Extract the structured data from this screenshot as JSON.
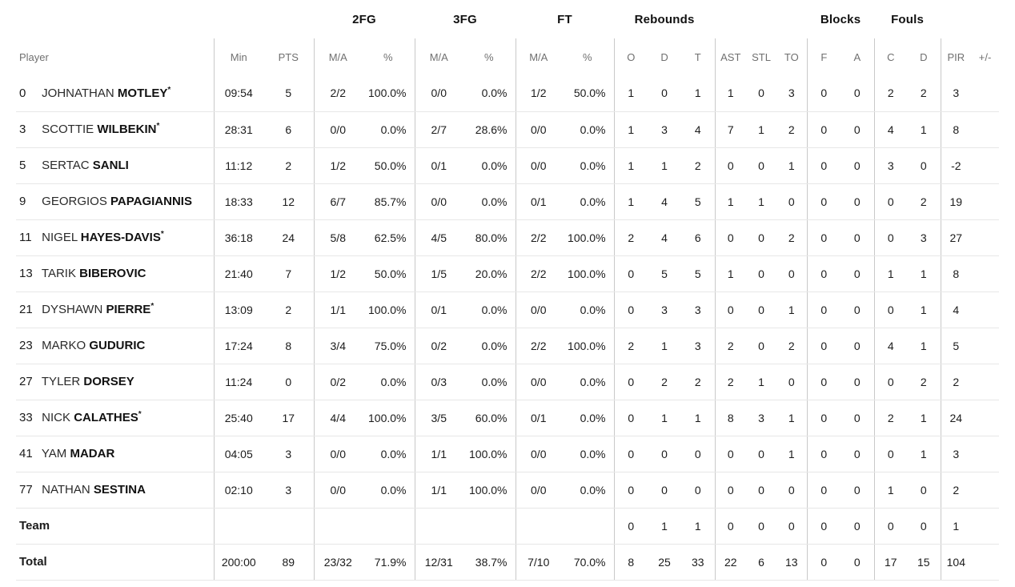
{
  "groups": {
    "fg2": "2FG",
    "fg3": "3FG",
    "ft": "FT",
    "rebounds": "Rebounds",
    "blocks": "Blocks",
    "fouls": "Fouls"
  },
  "columns": {
    "player": "Player",
    "min": "Min",
    "pts": "PTS",
    "ma": "M/A",
    "pct": "%",
    "o": "O",
    "d": "D",
    "t": "T",
    "ast": "AST",
    "stl": "STL",
    "to": "TO",
    "f": "F",
    "a": "A",
    "c": "C",
    "pir": "PIR",
    "plusminus": "+/-"
  },
  "starter_mark": "*",
  "players": [
    {
      "number": "0",
      "first": "JOHNATHAN",
      "last": "MOTLEY",
      "starter": true,
      "stats": [
        "09:54",
        "5",
        "2/2",
        "100.0%",
        "0/0",
        "0.0%",
        "1/2",
        "50.0%",
        "1",
        "0",
        "1",
        "1",
        "0",
        "3",
        "0",
        "0",
        "2",
        "2",
        "3",
        ""
      ]
    },
    {
      "number": "3",
      "first": "SCOTTIE",
      "last": "WILBEKIN",
      "starter": true,
      "stats": [
        "28:31",
        "6",
        "0/0",
        "0.0%",
        "2/7",
        "28.6%",
        "0/0",
        "0.0%",
        "1",
        "3",
        "4",
        "7",
        "1",
        "2",
        "0",
        "0",
        "4",
        "1",
        "8",
        ""
      ]
    },
    {
      "number": "5",
      "first": "SERTAC",
      "last": "SANLI",
      "starter": false,
      "stats": [
        "11:12",
        "2",
        "1/2",
        "50.0%",
        "0/1",
        "0.0%",
        "0/0",
        "0.0%",
        "1",
        "1",
        "2",
        "0",
        "0",
        "1",
        "0",
        "0",
        "3",
        "0",
        "-2",
        ""
      ]
    },
    {
      "number": "9",
      "first": "GEORGIOS",
      "last": "PAPAGIANNIS",
      "starter": false,
      "stats": [
        "18:33",
        "12",
        "6/7",
        "85.7%",
        "0/0",
        "0.0%",
        "0/1",
        "0.0%",
        "1",
        "4",
        "5",
        "1",
        "1",
        "0",
        "0",
        "0",
        "0",
        "2",
        "19",
        ""
      ]
    },
    {
      "number": "11",
      "first": "NIGEL",
      "last": "HAYES-DAVIS",
      "starter": true,
      "stats": [
        "36:18",
        "24",
        "5/8",
        "62.5%",
        "4/5",
        "80.0%",
        "2/2",
        "100.0%",
        "2",
        "4",
        "6",
        "0",
        "0",
        "2",
        "0",
        "0",
        "0",
        "3",
        "27",
        ""
      ]
    },
    {
      "number": "13",
      "first": "TARIK",
      "last": "BIBEROVIC",
      "starter": false,
      "stats": [
        "21:40",
        "7",
        "1/2",
        "50.0%",
        "1/5",
        "20.0%",
        "2/2",
        "100.0%",
        "0",
        "5",
        "5",
        "1",
        "0",
        "0",
        "0",
        "0",
        "1",
        "1",
        "8",
        ""
      ]
    },
    {
      "number": "21",
      "first": "DYSHAWN",
      "last": "PIERRE",
      "starter": true,
      "stats": [
        "13:09",
        "2",
        "1/1",
        "100.0%",
        "0/1",
        "0.0%",
        "0/0",
        "0.0%",
        "0",
        "3",
        "3",
        "0",
        "0",
        "1",
        "0",
        "0",
        "0",
        "1",
        "4",
        ""
      ]
    },
    {
      "number": "23",
      "first": "MARKO",
      "last": "GUDURIC",
      "starter": false,
      "stats": [
        "17:24",
        "8",
        "3/4",
        "75.0%",
        "0/2",
        "0.0%",
        "2/2",
        "100.0%",
        "2",
        "1",
        "3",
        "2",
        "0",
        "2",
        "0",
        "0",
        "4",
        "1",
        "5",
        ""
      ]
    },
    {
      "number": "27",
      "first": "TYLER",
      "last": "DORSEY",
      "starter": false,
      "stats": [
        "11:24",
        "0",
        "0/2",
        "0.0%",
        "0/3",
        "0.0%",
        "0/0",
        "0.0%",
        "0",
        "2",
        "2",
        "2",
        "1",
        "0",
        "0",
        "0",
        "0",
        "2",
        "2",
        ""
      ]
    },
    {
      "number": "33",
      "first": "NICK",
      "last": "CALATHES",
      "starter": true,
      "stats": [
        "25:40",
        "17",
        "4/4",
        "100.0%",
        "3/5",
        "60.0%",
        "0/1",
        "0.0%",
        "0",
        "1",
        "1",
        "8",
        "3",
        "1",
        "0",
        "0",
        "2",
        "1",
        "24",
        ""
      ]
    },
    {
      "number": "41",
      "first": "YAM",
      "last": "MADAR",
      "starter": false,
      "stats": [
        "04:05",
        "3",
        "0/0",
        "0.0%",
        "1/1",
        "100.0%",
        "0/0",
        "0.0%",
        "0",
        "0",
        "0",
        "0",
        "0",
        "1",
        "0",
        "0",
        "0",
        "1",
        "3",
        ""
      ]
    },
    {
      "number": "77",
      "first": "NATHAN",
      "last": "SESTINA",
      "starter": false,
      "stats": [
        "02:10",
        "3",
        "0/0",
        "0.0%",
        "1/1",
        "100.0%",
        "0/0",
        "0.0%",
        "0",
        "0",
        "0",
        "0",
        "0",
        "0",
        "0",
        "0",
        "1",
        "0",
        "2",
        ""
      ]
    }
  ],
  "team_row": {
    "label": "Team",
    "stats": [
      "",
      "",
      "",
      "",
      "",
      "",
      "",
      "",
      "0",
      "1",
      "1",
      "0",
      "0",
      "0",
      "0",
      "0",
      "0",
      "0",
      "1",
      ""
    ]
  },
  "total_row": {
    "label": "Total",
    "stats": [
      "200:00",
      "89",
      "23/32",
      "71.9%",
      "12/31",
      "38.7%",
      "7/10",
      "70.0%",
      "8",
      "25",
      "33",
      "22",
      "6",
      "13",
      "0",
      "0",
      "17",
      "15",
      "104",
      ""
    ]
  }
}
